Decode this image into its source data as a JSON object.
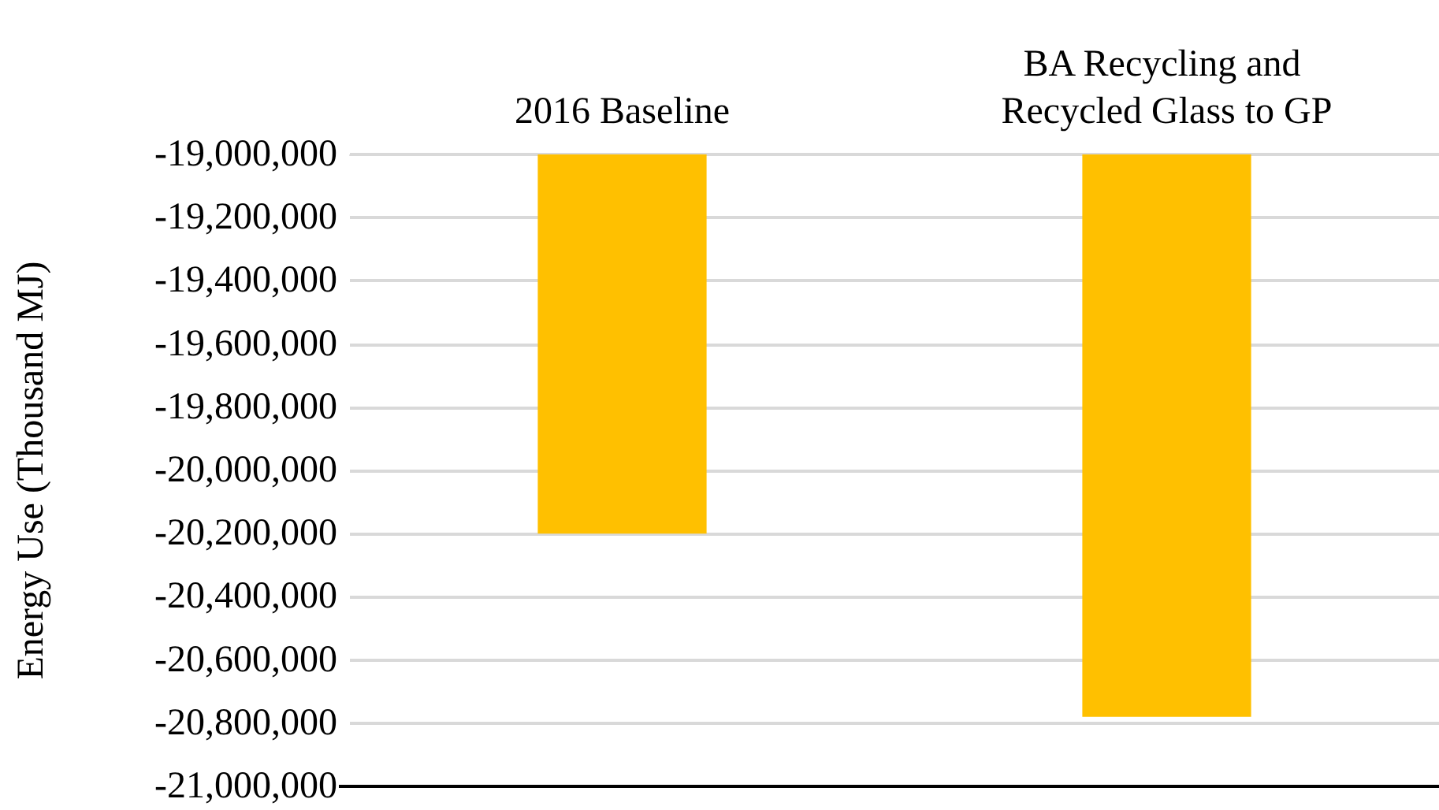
{
  "chart_data": {
    "type": "bar",
    "ylabel": "Energy Use (Thousand MJ)",
    "categories": [
      "2016 Baseline",
      "BA Recycling and Recycled Glass to GP"
    ],
    "values": [
      -20200000,
      -20780000
    ],
    "color": "#ffc000",
    "ylim": [
      -21000000,
      -19000000
    ],
    "yticks": [
      {
        "value": -21000000,
        "label": "-21,000,000"
      },
      {
        "value": -20800000,
        "label": "-20,800,000"
      },
      {
        "value": -20600000,
        "label": "-20,600,000"
      },
      {
        "value": -20400000,
        "label": "-20,400,000"
      },
      {
        "value": -20200000,
        "label": "-20,200,000"
      },
      {
        "value": -20000000,
        "label": "-20,000,000"
      },
      {
        "value": -19800000,
        "label": "-19,800,000"
      },
      {
        "value": -19600000,
        "label": "-19,600,000"
      },
      {
        "value": -19400000,
        "label": "-19,400,000"
      },
      {
        "value": -19200000,
        "label": "-19,200,000"
      },
      {
        "value": -19000000,
        "label": "-19,000,000"
      }
    ],
    "grid": "y"
  }
}
